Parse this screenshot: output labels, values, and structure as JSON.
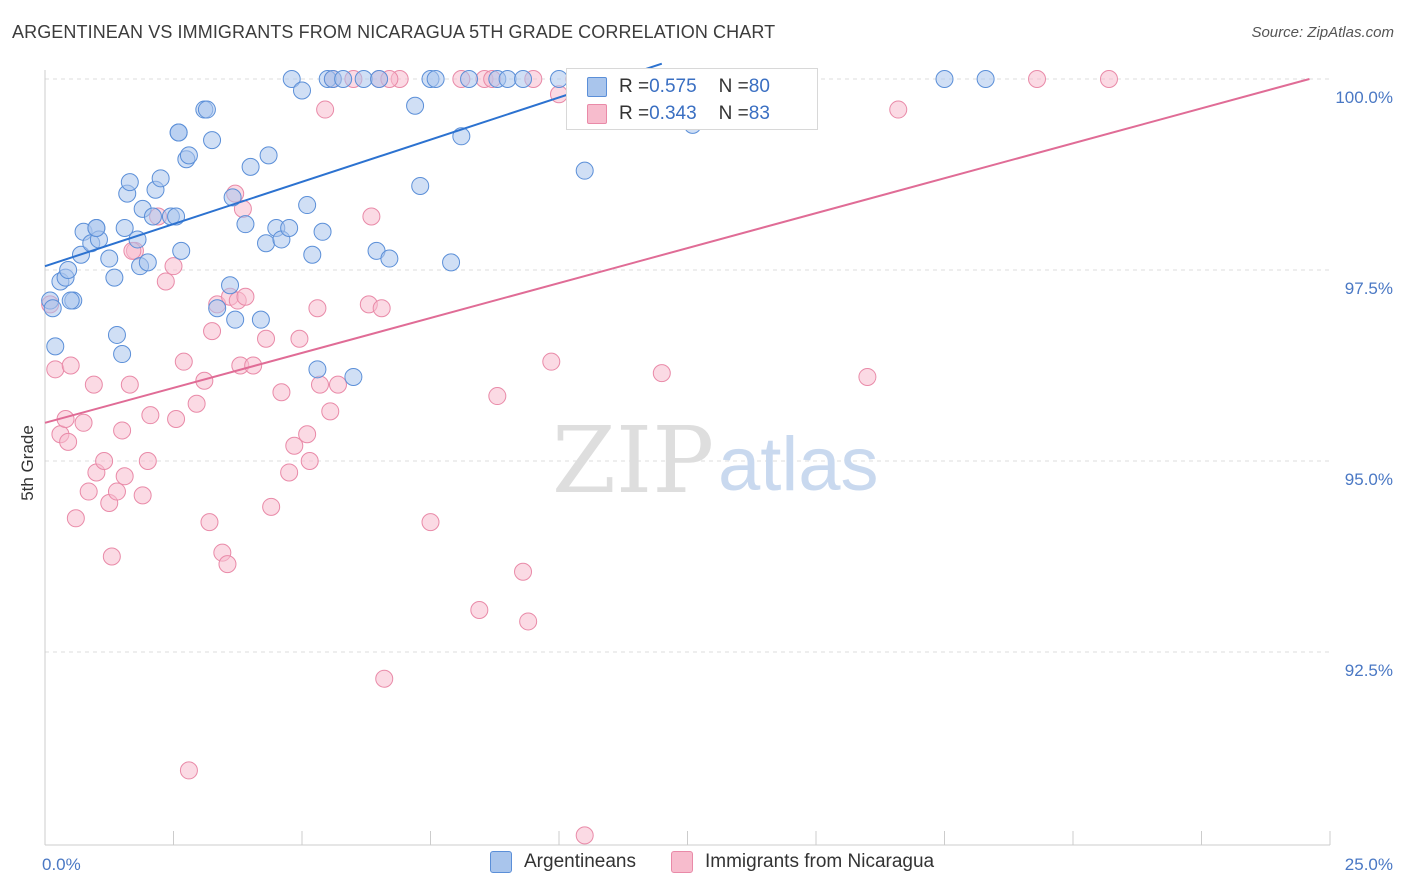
{
  "title": "ARGENTINEAN VS IMMIGRANTS FROM NICARAGUA 5TH GRADE CORRELATION CHART",
  "source": "Source: ZipAtlas.com",
  "watermark": {
    "zip": "ZIP",
    "atlas": "atlas"
  },
  "colors": {
    "blue_fill": "#a9c5ec",
    "blue_stroke": "#5b8fd8",
    "blue_line": "#2c72d0",
    "pink_fill": "#f7bccd",
    "pink_stroke": "#e98aa8",
    "pink_line": "#e06c96",
    "grid": "#dedede",
    "tick_text": "#4a78c4"
  },
  "legend": {
    "rows": [
      {
        "r_label": "R = ",
        "r_value": "0.575",
        "n_label": "N = ",
        "n_value": "80"
      },
      {
        "r_label": "R = ",
        "r_value": "0.343",
        "n_label": "N = ",
        "n_value": "83"
      }
    ]
  },
  "bottom_legend": [
    "Argentineans",
    "Immigrants from Nicaragua"
  ],
  "chart_data": {
    "type": "scatter",
    "title": "ARGENTINEAN VS IMMIGRANTS FROM NICARAGUA 5TH GRADE CORRELATION CHART",
    "xlabel": "",
    "ylabel": "5th Grade",
    "xlim": [
      0,
      25
    ],
    "ylim": [
      90.0,
      100.2
    ],
    "x_tick_labels": [
      {
        "value": 0,
        "label": "0.0%"
      },
      {
        "value": 25,
        "label": "25.0%"
      }
    ],
    "y_tick_labels": [
      {
        "value": 100.0,
        "label": "100.0%"
      },
      {
        "value": 97.5,
        "label": "97.5%"
      },
      {
        "value": 95.0,
        "label": "95.0%"
      },
      {
        "value": 92.5,
        "label": "92.5%"
      }
    ],
    "grid": "horizontal dashed",
    "legend_position": "top-center",
    "series": [
      {
        "name": "Argentineans",
        "color": "#5b8fd8",
        "trend": {
          "x0": 0,
          "y0": 97.55,
          "x1": 12.0,
          "y1": 100.2
        },
        "points": [
          [
            0.1,
            97.1
          ],
          [
            0.15,
            97.0
          ],
          [
            0.2,
            96.5
          ],
          [
            0.3,
            97.35
          ],
          [
            0.4,
            97.4
          ],
          [
            0.45,
            97.5
          ],
          [
            0.55,
            97.1
          ],
          [
            0.7,
            97.7
          ],
          [
            0.75,
            98.0
          ],
          [
            0.9,
            97.85
          ],
          [
            1.0,
            98.05
          ],
          [
            1.05,
            97.9
          ],
          [
            1.25,
            97.65
          ],
          [
            1.35,
            97.4
          ],
          [
            1.4,
            96.65
          ],
          [
            1.5,
            96.4
          ],
          [
            1.55,
            98.05
          ],
          [
            1.6,
            98.5
          ],
          [
            1.65,
            98.65
          ],
          [
            1.8,
            97.9
          ],
          [
            1.85,
            97.55
          ],
          [
            1.9,
            98.3
          ],
          [
            2.0,
            97.6
          ],
          [
            2.1,
            98.2
          ],
          [
            2.15,
            98.55
          ],
          [
            2.25,
            98.7
          ],
          [
            2.45,
            98.2
          ],
          [
            2.55,
            98.2
          ],
          [
            2.6,
            99.3
          ],
          [
            2.65,
            97.75
          ],
          [
            2.75,
            98.95
          ],
          [
            2.8,
            99.0
          ],
          [
            3.1,
            99.6
          ],
          [
            3.15,
            99.6
          ],
          [
            3.25,
            99.2
          ],
          [
            3.35,
            97.0
          ],
          [
            3.6,
            97.3
          ],
          [
            3.65,
            98.45
          ],
          [
            3.7,
            96.85
          ],
          [
            3.9,
            98.1
          ],
          [
            4.0,
            98.85
          ],
          [
            4.2,
            96.85
          ],
          [
            4.3,
            97.85
          ],
          [
            4.35,
            99.0
          ],
          [
            4.5,
            98.05
          ],
          [
            4.6,
            97.9
          ],
          [
            4.75,
            98.05
          ],
          [
            4.8,
            100.0
          ],
          [
            5.0,
            99.85
          ],
          [
            5.1,
            98.35
          ],
          [
            5.2,
            97.7
          ],
          [
            5.3,
            96.2
          ],
          [
            5.4,
            98.0
          ],
          [
            5.5,
            100.0
          ],
          [
            5.6,
            100.0
          ],
          [
            5.8,
            100.0
          ],
          [
            6.0,
            96.1
          ],
          [
            6.2,
            100.0
          ],
          [
            6.45,
            97.75
          ],
          [
            6.7,
            97.65
          ],
          [
            7.2,
            99.65
          ],
          [
            7.3,
            98.6
          ],
          [
            7.5,
            100.0
          ],
          [
            7.6,
            100.0
          ],
          [
            7.9,
            97.6
          ],
          [
            8.1,
            99.25
          ],
          [
            8.25,
            100.0
          ],
          [
            8.8,
            100.0
          ],
          [
            9.0,
            100.0
          ],
          [
            9.3,
            100.0
          ],
          [
            10.0,
            100.0
          ],
          [
            10.5,
            98.8
          ],
          [
            12.6,
            99.4
          ],
          [
            14.0,
            100.0
          ],
          [
            17.5,
            100.0
          ],
          [
            18.3,
            100.0
          ],
          [
            6.5,
            100.0
          ],
          [
            2.6,
            99.3
          ],
          [
            1.0,
            98.05
          ],
          [
            0.5,
            97.1
          ]
        ]
      },
      {
        "name": "Immigrants from Nicaragua",
        "color": "#e98aa8",
        "trend": {
          "x0": 0,
          "y0": 95.5,
          "x1": 24.6,
          "y1": 100.0
        },
        "points": [
          [
            0.1,
            97.05
          ],
          [
            0.2,
            96.2
          ],
          [
            0.3,
            95.35
          ],
          [
            0.4,
            95.55
          ],
          [
            0.45,
            95.25
          ],
          [
            0.5,
            96.25
          ],
          [
            0.6,
            94.25
          ],
          [
            0.75,
            95.5
          ],
          [
            0.85,
            94.6
          ],
          [
            0.95,
            96.0
          ],
          [
            1.0,
            94.85
          ],
          [
            1.15,
            95.0
          ],
          [
            1.25,
            94.45
          ],
          [
            1.3,
            93.75
          ],
          [
            1.4,
            94.6
          ],
          [
            1.5,
            95.4
          ],
          [
            1.55,
            94.8
          ],
          [
            1.65,
            96.0
          ],
          [
            1.75,
            97.75
          ],
          [
            1.9,
            94.55
          ],
          [
            2.0,
            95.0
          ],
          [
            2.05,
            95.6
          ],
          [
            2.2,
            98.2
          ],
          [
            2.35,
            97.35
          ],
          [
            2.5,
            97.55
          ],
          [
            2.55,
            95.55
          ],
          [
            2.7,
            96.3
          ],
          [
            2.8,
            90.95
          ],
          [
            2.95,
            95.75
          ],
          [
            3.1,
            96.05
          ],
          [
            3.2,
            94.2
          ],
          [
            3.25,
            96.7
          ],
          [
            3.35,
            97.05
          ],
          [
            3.45,
            93.8
          ],
          [
            3.55,
            93.65
          ],
          [
            3.6,
            97.15
          ],
          [
            3.7,
            98.5
          ],
          [
            3.75,
            97.1
          ],
          [
            3.8,
            96.25
          ],
          [
            3.85,
            98.3
          ],
          [
            3.9,
            97.15
          ],
          [
            4.05,
            96.25
          ],
          [
            4.3,
            96.6
          ],
          [
            4.4,
            94.4
          ],
          [
            4.6,
            95.9
          ],
          [
            4.75,
            94.85
          ],
          [
            4.85,
            95.2
          ],
          [
            4.95,
            96.6
          ],
          [
            5.1,
            95.35
          ],
          [
            5.15,
            95.0
          ],
          [
            5.3,
            97.0
          ],
          [
            5.35,
            96.0
          ],
          [
            5.45,
            99.6
          ],
          [
            5.55,
            95.65
          ],
          [
            5.6,
            100.0
          ],
          [
            5.7,
            96.0
          ],
          [
            6.0,
            100.0
          ],
          [
            6.3,
            97.05
          ],
          [
            6.35,
            98.2
          ],
          [
            6.5,
            100.0
          ],
          [
            6.55,
            97.0
          ],
          [
            6.6,
            92.15
          ],
          [
            6.9,
            100.0
          ],
          [
            7.5,
            94.2
          ],
          [
            8.1,
            100.0
          ],
          [
            8.45,
            93.05
          ],
          [
            8.55,
            100.0
          ],
          [
            8.8,
            95.85
          ],
          [
            9.3,
            93.55
          ],
          [
            9.4,
            92.9
          ],
          [
            9.5,
            100.0
          ],
          [
            9.85,
            96.3
          ],
          [
            10.0,
            99.8
          ],
          [
            10.3,
            100.0
          ],
          [
            10.5,
            90.1
          ],
          [
            12.0,
            96.15
          ],
          [
            16.0,
            96.1
          ],
          [
            16.6,
            99.6
          ],
          [
            19.3,
            100.0
          ],
          [
            20.7,
            100.0
          ],
          [
            8.7,
            100.0
          ],
          [
            6.7,
            100.0
          ],
          [
            1.7,
            97.75
          ]
        ]
      }
    ]
  }
}
